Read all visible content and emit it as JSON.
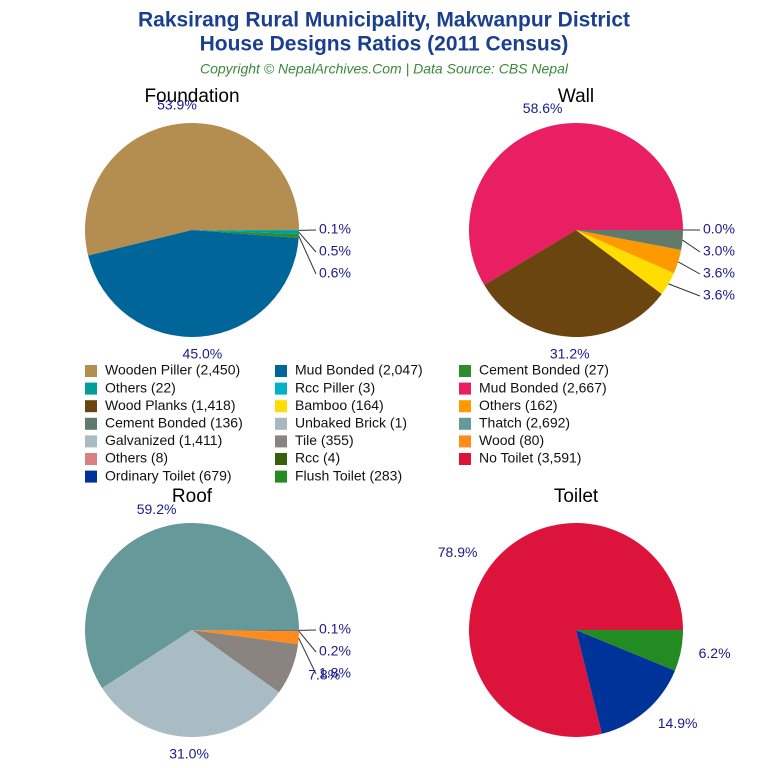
{
  "title": "Raksirang Rural Municipality, Makwanpur District",
  "subtitle": "House Designs Ratios (2011 Census)",
  "source": "Copyright © NepalArchives.Com | Data Source: CBS Nepal",
  "chart_data": [
    {
      "type": "pie",
      "title": "Foundation",
      "categories": [
        "Wooden Piller (2,450)",
        "Mud Bonded (2,047)",
        "Cement Bonded (27)",
        "Others (22)",
        "Rcc Piller (3)"
      ],
      "values": [
        53.9,
        45.0,
        0.6,
        0.5,
        0.1
      ],
      "value_labels": [
        "53.9%",
        "45.0%",
        "0.6%",
        "0.5%",
        "0.1%"
      ],
      "colors": [
        "#b38e50",
        "#006699",
        "#2e8b2e",
        "#009e96",
        "#00b3c6"
      ]
    },
    {
      "type": "pie",
      "title": "Wall",
      "categories": [
        "Mud Bonded (2,667)",
        "Wood Planks (1,418)",
        "Bamboo (164)",
        "Others (162)",
        "Cement Bonded (136)",
        "Unbaked Brick (1)"
      ],
      "values": [
        58.6,
        31.2,
        3.6,
        3.6,
        3.0,
        0.0
      ],
      "value_labels": [
        "58.6%",
        "31.2%",
        "3.6%",
        "3.6%",
        "3.0%",
        "0.0%"
      ],
      "colors": [
        "#e91e63",
        "#6b4510",
        "#ffdd00",
        "#ff9900",
        "#607a6c",
        "#a9b8c0"
      ]
    },
    {
      "type": "pie",
      "title": "Roof",
      "categories": [
        "Thatch (2,692)",
        "Galvanized (1,411)",
        "Tile (355)",
        "Wood (80)",
        "Others (8)",
        "Rcc (4)"
      ],
      "values": [
        59.2,
        31.0,
        7.8,
        1.8,
        0.2,
        0.1
      ],
      "value_labels": [
        "59.2%",
        "31.0%",
        "7.8%",
        "1.8%",
        "0.2%",
        "0.1%"
      ],
      "colors": [
        "#669999",
        "#a9bcc4",
        "#8a8480",
        "#ff8c1a",
        "#d98080",
        "#3a5f0b"
      ]
    },
    {
      "type": "pie",
      "title": "Toilet",
      "categories": [
        "No Toilet (3,591)",
        "Ordinary Toilet (679)",
        "Flush Toilet (283)"
      ],
      "values": [
        78.9,
        14.9,
        6.2
      ],
      "value_labels": [
        "78.9%",
        "14.9%",
        "6.2%"
      ],
      "colors": [
        "#dc143c",
        "#003399",
        "#228b22"
      ]
    }
  ]
}
